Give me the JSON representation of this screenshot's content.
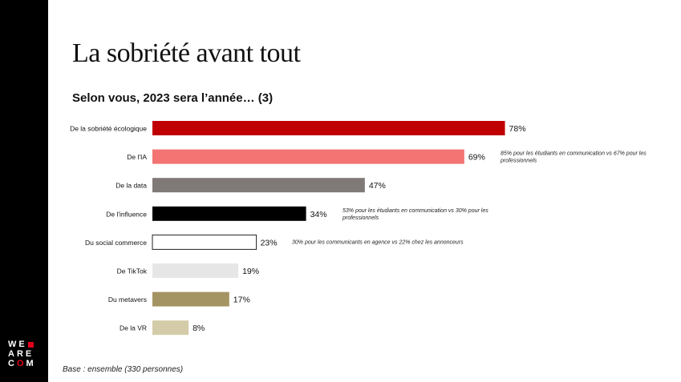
{
  "title": "La sobriété avant tout",
  "subtitle": "Selon vous, 2023 sera l’année… (3)",
  "footnote": "Base : ensemble (330 personnes)",
  "logo": {
    "row1": "WE",
    "row2": "ARE",
    "row3_a": "C",
    "row3_b": "O",
    "row3_c": "M"
  },
  "colors": {
    "sidebar": "#000000",
    "accent": "#e0001b"
  },
  "chart_data": {
    "type": "bar",
    "orientation": "horizontal",
    "categories": [
      "De la sobriété écologique",
      "De l'IA",
      "De la data",
      "De l'influence",
      "Du social commerce",
      "De TikTok",
      "Du metavers",
      "De la VR"
    ],
    "values": [
      78,
      69,
      47,
      34,
      23,
      19,
      17,
      8
    ],
    "value_labels": [
      "78%",
      "69%",
      "47%",
      "34%",
      "23%",
      "19%",
      "17%",
      "8%"
    ],
    "colors": [
      "#c00000",
      "#f47373",
      "#7f7978",
      "#000000",
      "#ffffff",
      "#e6e6e6",
      "#a49463",
      "#d4cca8"
    ],
    "annotations": [
      {
        "category": "De l'IA",
        "text": "85% pour les étudiants en communication vs 67% pour les professionnels"
      },
      {
        "category": "De l'influence",
        "text": "53% pour les étudiants en communication vs 30% pour les professionnels"
      },
      {
        "category": "Du social commerce",
        "text": "30% pour les communicants en agence vs 22% chez les annonceurs"
      }
    ],
    "xlim": [
      0,
      100
    ],
    "grid": false,
    "legend": "none"
  }
}
